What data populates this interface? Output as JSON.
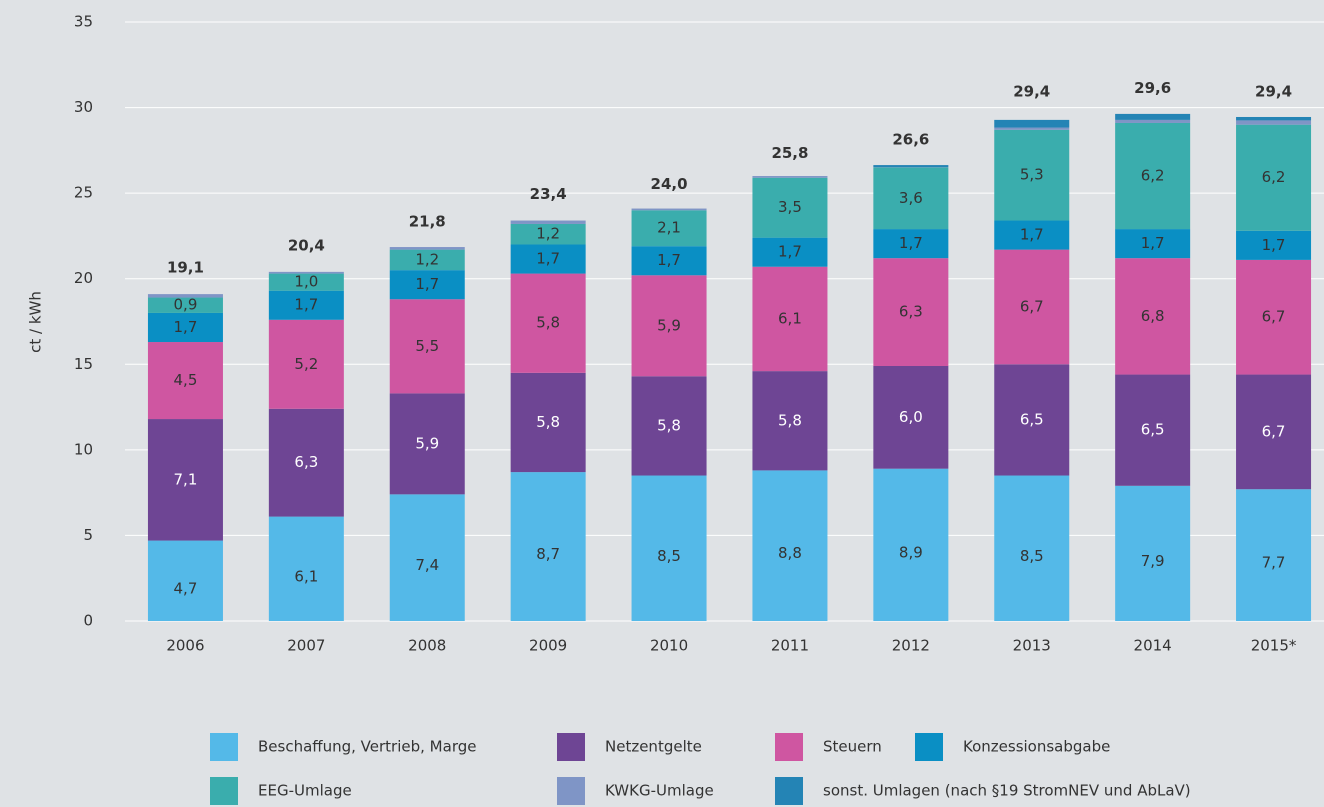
{
  "chart_data": {
    "type": "stacked-bar",
    "y_label": "ct / kWh",
    "categories": [
      "2006",
      "2007",
      "2008",
      "2009",
      "2010",
      "2011",
      "2012",
      "2013",
      "2014",
      "2015*"
    ],
    "series": [
      {
        "name": "Beschaffung, Vertrieb, Marge",
        "color": "#54b9e8",
        "values": [
          4.7,
          6.1,
          7.4,
          8.7,
          8.5,
          8.8,
          8.9,
          8.5,
          7.9,
          7.7
        ],
        "value_labels": [
          "4,7",
          "6,1",
          "7,4",
          "8,7",
          "8,5",
          "8,8",
          "8,9",
          "8,5",
          "7,9",
          "7,7"
        ]
      },
      {
        "name": "Netzentgelte",
        "color": "#6e4594",
        "values": [
          7.1,
          6.3,
          5.9,
          5.8,
          5.8,
          5.8,
          6.0,
          6.5,
          6.5,
          6.7
        ],
        "value_labels": [
          "7,1",
          "6,3",
          "5,9",
          "5,8",
          "5,8",
          "5,8",
          "6,0",
          "6,5",
          "6,5",
          "6,7"
        ]
      },
      {
        "name": "Steuern",
        "color": "#cf56a1",
        "values": [
          4.5,
          5.2,
          5.5,
          5.8,
          5.9,
          6.1,
          6.3,
          6.7,
          6.8,
          6.7
        ],
        "value_labels": [
          "4,5",
          "5,2",
          "5,5",
          "5,8",
          "5,9",
          "6,1",
          "6,3",
          "6,7",
          "6,8",
          "6,7"
        ]
      },
      {
        "name": "Konzessionsabgabe",
        "color": "#0a8fc4",
        "values": [
          1.7,
          1.7,
          1.7,
          1.7,
          1.7,
          1.7,
          1.7,
          1.7,
          1.7,
          1.7
        ],
        "value_labels": [
          "1,7",
          "1,7",
          "1,7",
          "1,7",
          "1,7",
          "1,7",
          "1,7",
          "1,7",
          "1,7",
          "1,7"
        ]
      },
      {
        "name": "EEG-Umlage",
        "color": "#3aadad",
        "values": [
          0.9,
          1.0,
          1.2,
          1.2,
          2.1,
          3.5,
          3.6,
          5.3,
          6.2,
          6.2
        ],
        "value_labels": [
          "0,9",
          "1,0",
          "1,2",
          "1,2",
          "2,1",
          "3,5",
          "3,6",
          "5,3",
          "6,2",
          "6,2"
        ]
      },
      {
        "name": "KWKG-Umlage",
        "color": "#7f95c6",
        "values": [
          0.2,
          0.1,
          0.15,
          0.2,
          0.1,
          0.1,
          0.02,
          0.13,
          0.18,
          0.25
        ]
      },
      {
        "name": "sonst. Umlagen (nach §19 StromNEV und AbLaV)",
        "color": "#2484b5",
        "values": [
          0,
          0,
          0,
          0,
          0,
          0,
          0.12,
          0.45,
          0.35,
          0.2
        ]
      }
    ],
    "totals": [
      19.1,
      20.4,
      21.8,
      23.4,
      24.0,
      25.8,
      26.6,
      29.4,
      29.6,
      29.4
    ],
    "total_labels": [
      "19,1",
      "20,4",
      "21,8",
      "23,4",
      "24,0",
      "25,8",
      "26,6",
      "29,4",
      "29,6",
      "29,4"
    ],
    "ylim": [
      0,
      35
    ],
    "yticks": [
      0,
      5,
      10,
      15,
      20,
      25,
      30,
      35
    ],
    "grid": true
  }
}
